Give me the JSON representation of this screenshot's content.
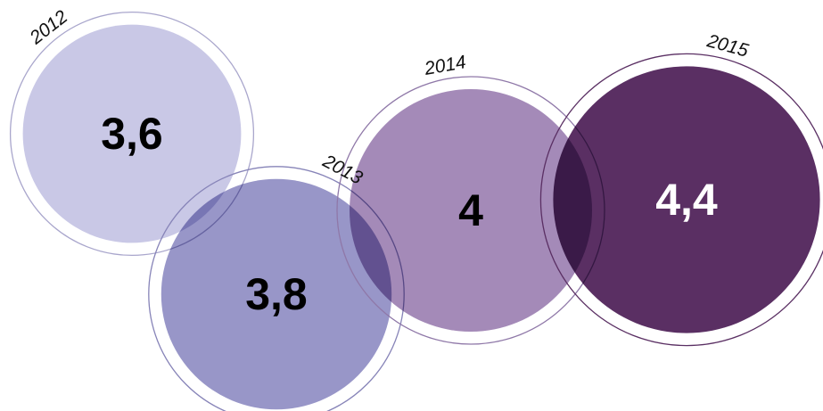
{
  "chart_data": {
    "type": "bubble",
    "categories": [
      "2012",
      "2013",
      "2014",
      "2015"
    ],
    "values": [
      3.6,
      3.8,
      4,
      4.4
    ],
    "value_labels": [
      "3,6",
      "3,8",
      "4",
      "4,4"
    ],
    "colors": [
      "#c9c8e6",
      "#9896c8",
      "#a48ab8",
      "#5a2f63"
    ]
  }
}
